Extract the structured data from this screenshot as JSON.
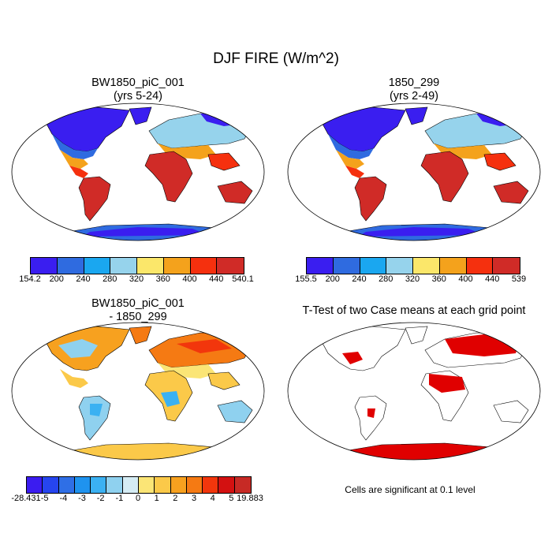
{
  "title": "DJF FIRE (W/m^2)",
  "panels": [
    {
      "title_line1": "BW1850_piC_001",
      "title_line2": "(yrs 5-24)"
    },
    {
      "title_line1": "1850_299",
      "title_line2": "(yrs 2-49)"
    },
    {
      "title_line1": "BW1850_piC_001",
      "title_line2": "- 1850_299"
    },
    {
      "title_line1": "T-Test of two Case means at each grid point",
      "title_line2": ""
    }
  ],
  "colorbars": [
    {
      "labels": [
        "154.2",
        "200",
        "240",
        "280",
        "320",
        "360",
        "400",
        "440",
        "540.1"
      ],
      "colors": [
        "#3a1ef0",
        "#2f6be0",
        "#1aa7f0",
        "#96d3ec",
        "#fbe76a",
        "#f4a21c",
        "#f5300e",
        "#d02b27"
      ]
    },
    {
      "labels": [
        "155.5",
        "200",
        "240",
        "280",
        "320",
        "360",
        "400",
        "440",
        "539"
      ],
      "colors": [
        "#3a1ef0",
        "#2f6be0",
        "#1aa7f0",
        "#96d3ec",
        "#fbe76a",
        "#f4a21c",
        "#f5300e",
        "#d02b27"
      ]
    },
    {
      "labels": [
        "-28.431",
        "-5",
        "-4",
        "-3",
        "-2",
        "-1",
        "0",
        "1",
        "2",
        "3",
        "4",
        "5",
        "19.883"
      ],
      "colors": [
        "#3b1cf0",
        "#2645ef",
        "#2f6fe6",
        "#1f93ef",
        "#3bb1f2",
        "#8fd1ef",
        "#d5ecf4",
        "#fbe576",
        "#fbc949",
        "#f7a11f",
        "#f57a13",
        "#f2360c",
        "#d31111",
        "#c72a25"
      ]
    }
  ],
  "ttest_note": "Cells are significant at 0.1 level",
  "colors": {
    "red": "#e00000",
    "ocean": "#ffffff",
    "outline": "#000000"
  }
}
